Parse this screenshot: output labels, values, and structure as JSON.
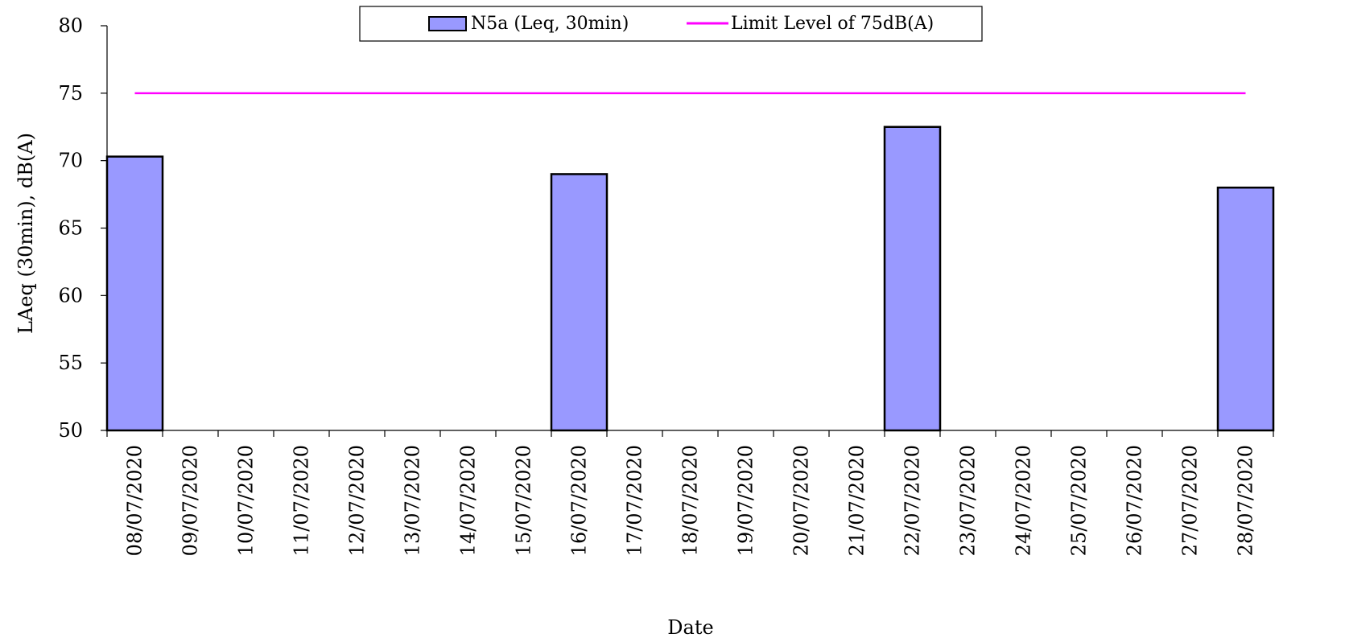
{
  "chart_data": {
    "type": "bar",
    "title": "",
    "xlabel": "Date",
    "ylabel": "LAeq (30min), dB(A)",
    "ylim": [
      50,
      80
    ],
    "yticks": [
      50,
      55,
      60,
      65,
      70,
      75,
      80
    ],
    "grid": false,
    "legend_position": "top-center",
    "categories": [
      "08/07/2020",
      "09/07/2020",
      "10/07/2020",
      "11/07/2020",
      "12/07/2020",
      "13/07/2020",
      "14/07/2020",
      "15/07/2020",
      "16/07/2020",
      "17/07/2020",
      "18/07/2020",
      "19/07/2020",
      "20/07/2020",
      "21/07/2020",
      "22/07/2020",
      "23/07/2020",
      "24/07/2020",
      "25/07/2020",
      "26/07/2020",
      "27/07/2020",
      "28/07/2020"
    ],
    "series": [
      {
        "name": "N5a (Leq, 30min)",
        "type": "bar",
        "color": "#9999ff",
        "values": [
          70.3,
          null,
          null,
          null,
          null,
          null,
          null,
          null,
          69.0,
          null,
          null,
          null,
          null,
          null,
          72.5,
          null,
          null,
          null,
          null,
          null,
          68.0
        ]
      },
      {
        "name": "Limit Level of 75dB(A)",
        "type": "line",
        "color": "#ff00ff",
        "value": 75
      }
    ]
  }
}
